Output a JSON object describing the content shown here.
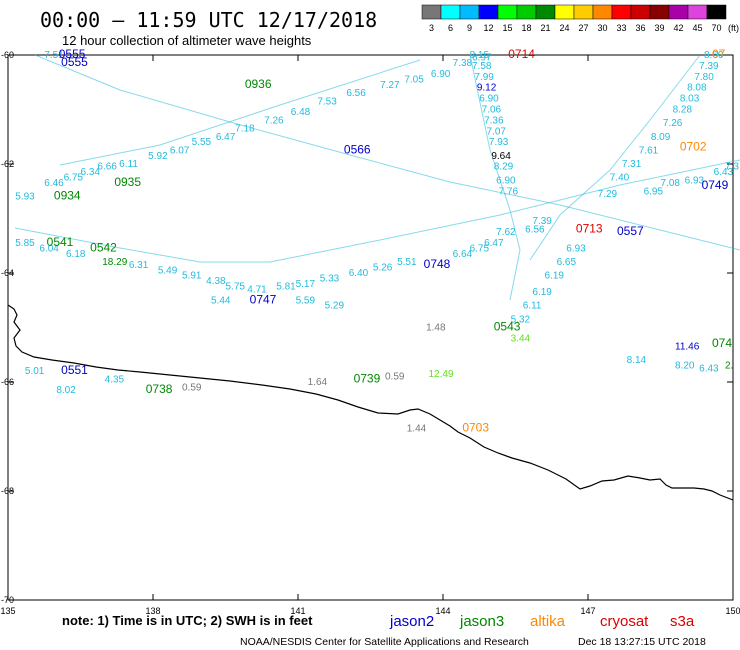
{
  "header": {
    "title": "00:00 – 11:59 UTC 12/17/2018",
    "subtitle": "12 hour collection of altimeter wave heights"
  },
  "colorbar": {
    "labels": [
      "3",
      "6",
      "9",
      "12",
      "15",
      "18",
      "21",
      "24",
      "27",
      "30",
      "33",
      "36",
      "39",
      "42",
      "45",
      "70"
    ],
    "unit": "(ft)",
    "colors": [
      "#777777",
      "#00ffff",
      "#00bbff",
      "#0000ff",
      "#00ff00",
      "#00cc00",
      "#008800",
      "#ffff00",
      "#ffcc00",
      "#ff8800",
      "#ff0000",
      "#cc0000",
      "#880000",
      "#aa00aa",
      "#dd44dd",
      "#000000"
    ]
  },
  "map": {
    "lon_ticks": [
      "135",
      "138",
      "141",
      "144",
      "147",
      "150"
    ],
    "lat_ticks": [
      "-60",
      "-62",
      "-64",
      "-66",
      "-68",
      "-70"
    ]
  },
  "footer": {
    "note": "note:  1) Time is in UTC;  2) SWH is in feet",
    "credit": "NOAA/NESDIS Center for Satellite Applications and Research",
    "timestamp": "Dec 18 13:27:15 UTC 2018",
    "legend": [
      {
        "name": "jason2",
        "color": "#0000cc"
      },
      {
        "name": "jason3",
        "color": "#008800"
      },
      {
        "name": "altika",
        "color": "#ff8800"
      },
      {
        "name": "cryosat",
        "color": "#dd0000"
      },
      {
        "name": "s3a",
        "color": "#dd0000"
      }
    ]
  },
  "tracks": {
    "times": [
      {
        "t": "0555",
        "lon": 136.05,
        "lat": -60.0,
        "color": "#0000cc"
      },
      {
        "t": "0555",
        "lon": 136.1,
        "lat": -60.15,
        "color": "#0000cc"
      },
      {
        "t": "0936",
        "lon": 139.9,
        "lat": -60.55,
        "color": "#008800"
      },
      {
        "t": "0714",
        "lon": 145.35,
        "lat": -60.0,
        "color": "#dd0000"
      },
      {
        "t": "0702",
        "lon": 148.9,
        "lat": -61.7,
        "color": "#ff8800"
      },
      {
        "t": "0566",
        "lon": 141.95,
        "lat": -61.75,
        "color": "#0000cc"
      },
      {
        "t": "0934",
        "lon": 135.95,
        "lat": -62.6,
        "color": "#008800"
      },
      {
        "t": "0935",
        "lon": 137.2,
        "lat": -62.35,
        "color": "#008800"
      },
      {
        "t": "0749",
        "lon": 149.35,
        "lat": -62.4,
        "color": "#0000cc"
      },
      {
        "t": "0713",
        "lon": 146.75,
        "lat": -63.2,
        "color": "#dd0000"
      },
      {
        "t": "0557",
        "lon": 147.6,
        "lat": -63.25,
        "color": "#0000cc"
      },
      {
        "t": "0541",
        "lon": 135.8,
        "lat": -63.45,
        "color": "#008800"
      },
      {
        "t": "0542",
        "lon": 136.7,
        "lat": -63.55,
        "color": "#008800"
      },
      {
        "t": "0748",
        "lon": 143.6,
        "lat": -63.85,
        "color": "#0000cc"
      },
      {
        "t": "0747",
        "lon": 140.0,
        "lat": -64.5,
        "color": "#0000cc"
      },
      {
        "t": "0543",
        "lon": 145.05,
        "lat": -65.0,
        "color": "#008800"
      },
      {
        "t": "0551",
        "lon": 136.1,
        "lat": -65.8,
        "color": "#0000cc"
      },
      {
        "t": "0738",
        "lon": 137.85,
        "lat": -66.15,
        "color": "#008800"
      },
      {
        "t": "0739",
        "lon": 142.15,
        "lat": -65.95,
        "color": "#008800"
      },
      {
        "t": "0703",
        "lon": 144.4,
        "lat": -66.85,
        "color": "#ff8800"
      },
      {
        "t": "074",
        "lon": 149.75,
        "lat": -65.3,
        "color": "#008800"
      },
      {
        "t": "07",
        "lon": 150.0,
        "lat": -60.0,
        "color": "#ff8800"
      }
    ],
    "swh_labels": [
      {
        "v": "7.51",
        "lon": 135.75,
        "lat": -60.0,
        "color": "#22bbdd"
      },
      {
        "v": "6.97",
        "lon": 144.6,
        "lat": -60.05,
        "color": "#22bbdd"
      },
      {
        "v": "7.38",
        "lon": 144.2,
        "lat": -60.15,
        "color": "#22bbdd"
      },
      {
        "v": "6.90",
        "lon": 143.75,
        "lat": -60.35,
        "color": "#22bbdd"
      },
      {
        "v": "7.05",
        "lon": 143.2,
        "lat": -60.45,
        "color": "#22bbdd"
      },
      {
        "v": "7.27",
        "lon": 142.7,
        "lat": -60.55,
        "color": "#22bbdd"
      },
      {
        "v": "6.56",
        "lon": 142.0,
        "lat": -60.7,
        "color": "#22bbdd"
      },
      {
        "v": "7.53",
        "lon": 141.4,
        "lat": -60.85,
        "color": "#22bbdd"
      },
      {
        "v": "6.48",
        "lon": 140.85,
        "lat": -61.05,
        "color": "#22bbdd"
      },
      {
        "v": "7.26",
        "lon": 140.3,
        "lat": -61.2,
        "color": "#22bbdd"
      },
      {
        "v": "7.18",
        "lon": 139.7,
        "lat": -61.35,
        "color": "#22bbdd"
      },
      {
        "v": "6.47",
        "lon": 139.3,
        "lat": -61.5,
        "color": "#22bbdd"
      },
      {
        "v": "5.55",
        "lon": 138.8,
        "lat": -61.6,
        "color": "#22bbdd"
      },
      {
        "v": "6.07",
        "lon": 138.35,
        "lat": -61.75,
        "color": "#22bbdd"
      },
      {
        "v": "5.92",
        "lon": 137.9,
        "lat": -61.85,
        "color": "#22bbdd"
      },
      {
        "v": "6.11",
        "lon": 137.3,
        "lat": -62.0,
        "color": "#22bbdd"
      },
      {
        "v": "6.66",
        "lon": 136.85,
        "lat": -62.05,
        "color": "#22bbdd"
      },
      {
        "v": "6.34",
        "lon": 136.5,
        "lat": -62.15,
        "color": "#22bbdd"
      },
      {
        "v": "6.75",
        "lon": 136.15,
        "lat": -62.25,
        "color": "#22bbdd"
      },
      {
        "v": "6.46",
        "lon": 135.75,
        "lat": -62.35,
        "color": "#22bbdd"
      },
      {
        "v": "5.93",
        "lon": 135.15,
        "lat": -62.6,
        "color": "#22bbdd"
      },
      {
        "v": "8.15",
        "lon": 144.55,
        "lat": -60.0,
        "color": "#22bbdd"
      },
      {
        "v": "7.58",
        "lon": 144.6,
        "lat": -60.2,
        "color": "#22bbdd"
      },
      {
        "v": "7.99",
        "lon": 144.65,
        "lat": -60.4,
        "color": "#22bbdd"
      },
      {
        "v": "9.12",
        "lon": 144.7,
        "lat": -60.6,
        "color": "#0000cc"
      },
      {
        "v": "6.90",
        "lon": 144.75,
        "lat": -60.8,
        "color": "#22bbdd"
      },
      {
        "v": "7.06",
        "lon": 144.8,
        "lat": -61.0,
        "color": "#22bbdd"
      },
      {
        "v": "7.36",
        "lon": 144.85,
        "lat": -61.2,
        "color": "#22bbdd"
      },
      {
        "v": "7.07",
        "lon": 144.9,
        "lat": -61.4,
        "color": "#22bbdd"
      },
      {
        "v": "7.93",
        "lon": 144.95,
        "lat": -61.6,
        "color": "#22bbdd"
      },
      {
        "v": "9.64",
        "lon": 145.0,
        "lat": -61.85,
        "color": "#000000"
      },
      {
        "v": "8.29",
        "lon": 145.05,
        "lat": -62.05,
        "color": "#22bbdd"
      },
      {
        "v": "6.90",
        "lon": 145.1,
        "lat": -62.3,
        "color": "#22bbdd"
      },
      {
        "v": "7.76",
        "lon": 145.15,
        "lat": -62.5,
        "color": "#22bbdd"
      },
      {
        "v": "7.62",
        "lon": 145.1,
        "lat": -63.25,
        "color": "#22bbdd"
      },
      {
        "v": "6.56",
        "lon": 145.7,
        "lat": -63.2,
        "color": "#22bbdd"
      },
      {
        "v": "7.39",
        "lon": 145.85,
        "lat": -63.05,
        "color": "#22bbdd"
      },
      {
        "v": "6.93",
        "lon": 146.55,
        "lat": -63.55,
        "color": "#22bbdd"
      },
      {
        "v": "6.65",
        "lon": 146.35,
        "lat": -63.8,
        "color": "#22bbdd"
      },
      {
        "v": "6.19",
        "lon": 146.1,
        "lat": -64.05,
        "color": "#22bbdd"
      },
      {
        "v": "6.19",
        "lon": 145.85,
        "lat": -64.35,
        "color": "#22bbdd"
      },
      {
        "v": "6.11",
        "lon": 145.65,
        "lat": -64.6,
        "color": "#22bbdd"
      },
      {
        "v": "5.32",
        "lon": 145.4,
        "lat": -64.85,
        "color": "#22bbdd"
      },
      {
        "v": "3.44",
        "lon": 145.4,
        "lat": -65.2,
        "color": "#66dd22"
      },
      {
        "v": "8.60",
        "lon": 149.4,
        "lat": -60.0,
        "color": "#22bbdd"
      },
      {
        "v": "7.39",
        "lon": 149.3,
        "lat": -60.2,
        "color": "#22bbdd"
      },
      {
        "v": "7.80",
        "lon": 149.2,
        "lat": -60.4,
        "color": "#22bbdd"
      },
      {
        "v": "8.08",
        "lon": 149.05,
        "lat": -60.6,
        "color": "#22bbdd"
      },
      {
        "v": "8.03",
        "lon": 148.9,
        "lat": -60.8,
        "color": "#22bbdd"
      },
      {
        "v": "8.28",
        "lon": 148.75,
        "lat": -61.0,
        "color": "#22bbdd"
      },
      {
        "v": "7.26",
        "lon": 148.55,
        "lat": -61.25,
        "color": "#22bbdd"
      },
      {
        "v": "8.09",
        "lon": 148.3,
        "lat": -61.5,
        "color": "#22bbdd"
      },
      {
        "v": "7.61",
        "lon": 148.05,
        "lat": -61.75,
        "color": "#22bbdd"
      },
      {
        "v": "7.31",
        "lon": 147.7,
        "lat": -62.0,
        "color": "#22bbdd"
      },
      {
        "v": "7.40",
        "lon": 147.45,
        "lat": -62.25,
        "color": "#22bbdd"
      },
      {
        "v": "7.29",
        "lon": 147.2,
        "lat": -62.55,
        "color": "#22bbdd"
      },
      {
        "v": "6.95",
        "lon": 148.15,
        "lat": -62.5,
        "color": "#22bbdd"
      },
      {
        "v": "7.08",
        "lon": 148.5,
        "lat": -62.35,
        "color": "#22bbdd"
      },
      {
        "v": "6.93",
        "lon": 149.0,
        "lat": -62.3,
        "color": "#22bbdd"
      },
      {
        "v": "6.43",
        "lon": 149.6,
        "lat": -62.15,
        "color": "#22bbdd"
      },
      {
        "v": "7.3",
        "lon": 149.9,
        "lat": -62.05,
        "color": "#22bbdd"
      },
      {
        "v": "5.85",
        "lon": 135.15,
        "lat": -63.45,
        "color": "#22bbdd"
      },
      {
        "v": "6.04",
        "lon": 135.65,
        "lat": -63.55,
        "color": "#22bbdd"
      },
      {
        "v": "6.18",
        "lon": 136.2,
        "lat": -63.65,
        "color": "#22bbdd"
      },
      {
        "v": "18.29",
        "lon": 136.95,
        "lat": -63.8,
        "color": "#008800"
      },
      {
        "v": "6.31",
        "lon": 137.5,
        "lat": -63.85,
        "color": "#22bbdd"
      },
      {
        "v": "5.49",
        "lon": 138.1,
        "lat": -63.95,
        "color": "#22bbdd"
      },
      {
        "v": "5.91",
        "lon": 138.6,
        "lat": -64.05,
        "color": "#22bbdd"
      },
      {
        "v": "4.38",
        "lon": 139.1,
        "lat": -64.15,
        "color": "#22bbdd"
      },
      {
        "v": "5.75",
        "lon": 139.5,
        "lat": -64.25,
        "color": "#22bbdd"
      },
      {
        "v": "4.71",
        "lon": 139.95,
        "lat": -64.3,
        "color": "#22bbdd"
      },
      {
        "v": "5.44",
        "lon": 139.2,
        "lat": -64.5,
        "color": "#22bbdd"
      },
      {
        "v": "5.81",
        "lon": 140.55,
        "lat": -64.25,
        "color": "#22bbdd"
      },
      {
        "v": "5.17",
        "lon": 140.95,
        "lat": -64.2,
        "color": "#22bbdd"
      },
      {
        "v": "5.33",
        "lon": 141.45,
        "lat": -64.1,
        "color": "#22bbdd"
      },
      {
        "v": "5.29",
        "lon": 141.55,
        "lat": -64.6,
        "color": "#22bbdd"
      },
      {
        "v": "5.59",
        "lon": 140.95,
        "lat": -64.5,
        "color": "#22bbdd"
      },
      {
        "v": "6.40",
        "lon": 142.05,
        "lat": -64.0,
        "color": "#22bbdd"
      },
      {
        "v": "5.26",
        "lon": 142.55,
        "lat": -63.9,
        "color": "#22bbdd"
      },
      {
        "v": "5.51",
        "lon": 143.05,
        "lat": -63.8,
        "color": "#22bbdd"
      },
      {
        "v": "6.64",
        "lon": 144.2,
        "lat": -63.65,
        "color": "#22bbdd"
      },
      {
        "v": "6.75",
        "lon": 144.55,
        "lat": -63.55,
        "color": "#22bbdd"
      },
      {
        "v": "6.47",
        "lon": 144.85,
        "lat": -63.45,
        "color": "#22bbdd"
      },
      {
        "v": "1.48",
        "lon": 143.65,
        "lat": -65.0,
        "color": "#777777"
      },
      {
        "v": "12.49",
        "lon": 143.7,
        "lat": -65.85,
        "color": "#66dd22"
      },
      {
        "v": "11.46",
        "lon": 148.8,
        "lat": -65.35,
        "color": "#0000cc"
      },
      {
        "v": "8.14",
        "lon": 147.8,
        "lat": -65.6,
        "color": "#22bbdd"
      },
      {
        "v": "8.20",
        "lon": 148.8,
        "lat": -65.7,
        "color": "#22bbdd"
      },
      {
        "v": "6.43",
        "lon": 149.3,
        "lat": -65.75,
        "color": "#22bbdd"
      },
      {
        "v": "2.",
        "lon": 149.95,
        "lat": -65.7,
        "color": "#008800"
      },
      {
        "v": "5.01",
        "lon": 135.35,
        "lat": -65.8,
        "color": "#22bbdd"
      },
      {
        "v": "4.35",
        "lon": 137.0,
        "lat": -65.95,
        "color": "#22bbdd"
      },
      {
        "v": "8.02",
        "lon": 136.0,
        "lat": -66.15,
        "color": "#22bbdd"
      },
      {
        "v": "0.59",
        "lon": 138.6,
        "lat": -66.1,
        "color": "#777777"
      },
      {
        "v": "1.64",
        "lon": 141.2,
        "lat": -66.0,
        "color": "#777777"
      },
      {
        "v": "0.59",
        "lon": 142.8,
        "lat": -65.9,
        "color": "#777777"
      },
      {
        "v": "1.44",
        "lon": 143.25,
        "lat": -66.85,
        "color": "#777777"
      }
    ]
  }
}
